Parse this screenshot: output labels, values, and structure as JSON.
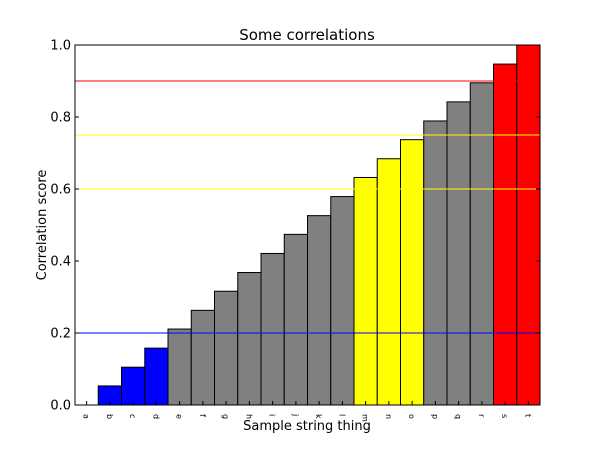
{
  "chart_data": {
    "type": "bar",
    "title": "Some correlations",
    "xlabel": "Sample string thing",
    "ylabel": "Correlation score",
    "ylim": [
      0,
      1.0
    ],
    "yticks": [
      0.0,
      0.2,
      0.4,
      0.6,
      0.8,
      1.0
    ],
    "ytick_labels": [
      "0.0",
      "0.2",
      "0.4",
      "0.6",
      "0.8",
      "1.0"
    ],
    "grid": false,
    "categories": [
      "a",
      "b",
      "c",
      "d",
      "e",
      "f",
      "g",
      "h",
      "i",
      "j",
      "k",
      "l",
      "m",
      "n",
      "o",
      "p",
      "q",
      "r",
      "s",
      "t"
    ],
    "values": [
      0.0,
      0.053,
      0.105,
      0.158,
      0.211,
      0.263,
      0.316,
      0.368,
      0.421,
      0.474,
      0.526,
      0.579,
      0.632,
      0.684,
      0.737,
      0.789,
      0.842,
      0.895,
      0.947,
      1.0
    ],
    "bar_colors": [
      "#0000ff",
      "#0000ff",
      "#0000ff",
      "#0000ff",
      "#808080",
      "#808080",
      "#808080",
      "#808080",
      "#808080",
      "#808080",
      "#808080",
      "#808080",
      "#ffff00",
      "#ffff00",
      "#ffff00",
      "#808080",
      "#808080",
      "#808080",
      "#ff0000",
      "#ff0000"
    ],
    "reference_lines": [
      {
        "y": 0.2,
        "color": "#0000ff"
      },
      {
        "y": 0.6,
        "color": "#ffff00"
      },
      {
        "y": 0.75,
        "color": "#ffff00"
      },
      {
        "y": 0.9,
        "color": "#ff0000"
      }
    ]
  }
}
